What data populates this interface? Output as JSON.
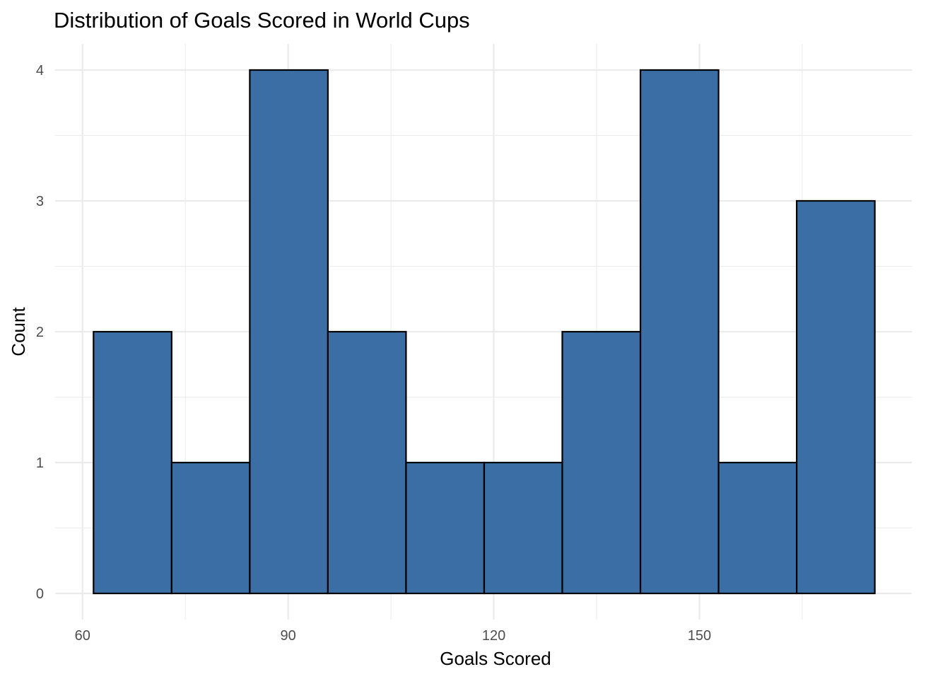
{
  "chart_data": {
    "type": "bar",
    "subtype": "histogram",
    "title": "Distribution of Goals Scored in World Cups",
    "xlabel": "Goals Scored",
    "ylabel": "Count",
    "bins": [
      {
        "x0": 61.6,
        "x1": 73.0,
        "count": 2
      },
      {
        "x0": 73.0,
        "x1": 84.4,
        "count": 1
      },
      {
        "x0": 84.4,
        "x1": 95.8,
        "count": 4
      },
      {
        "x0": 95.8,
        "x1": 107.2,
        "count": 2
      },
      {
        "x0": 107.2,
        "x1": 118.6,
        "count": 1
      },
      {
        "x0": 118.6,
        "x1": 130.0,
        "count": 1
      },
      {
        "x0": 130.0,
        "x1": 141.4,
        "count": 2
      },
      {
        "x0": 141.4,
        "x1": 152.8,
        "count": 4
      },
      {
        "x0": 152.8,
        "x1": 164.2,
        "count": 1
      },
      {
        "x0": 164.2,
        "x1": 175.6,
        "count": 3
      }
    ],
    "xlim": [
      56,
      181
    ],
    "ylim": [
      -0.2,
      4.2
    ],
    "x_ticks": [
      60,
      90,
      120,
      150
    ],
    "x_minor_ticks": [
      75,
      105,
      135,
      165
    ],
    "y_ticks": [
      0,
      1,
      2,
      3,
      4
    ],
    "y_minor_ticks": [
      0.5,
      1.5,
      2.5,
      3.5
    ],
    "grid": true,
    "colors": {
      "bar_fill": "#3a6ea5",
      "bar_outline": "#000000",
      "grid": "#ebebeb",
      "background": "#ffffff"
    }
  }
}
